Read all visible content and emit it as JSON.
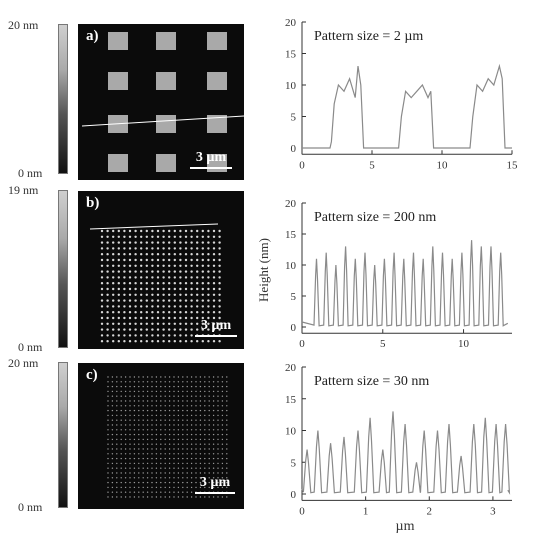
{
  "colorbars": [
    {
      "top_label": "20 nm",
      "bottom_label": "0 nm"
    },
    {
      "top_label": "19 nm",
      "bottom_label": "0 nm"
    },
    {
      "top_label": "20 nm",
      "bottom_label": "0 nm"
    }
  ],
  "afm_panels": [
    {
      "letter": "a)",
      "scale_label": "3 µm"
    },
    {
      "letter": "b)",
      "scale_label": "3 µm"
    },
    {
      "letter": "c)",
      "scale_label": "3 µm"
    }
  ],
  "ylabel": "Height (nm)",
  "xlabel": "µm",
  "colors": {
    "trace": "#8a8a8a",
    "afm_bg": "#0b0b0b"
  },
  "chart_data": [
    {
      "type": "line",
      "title": "Pattern size = 2 µm",
      "xlim": [
        0,
        15
      ],
      "ylim": [
        -1,
        20
      ],
      "xticks": [
        0,
        5,
        10,
        15
      ],
      "yticks": [
        0,
        5,
        10,
        15,
        20
      ],
      "x": [
        0,
        1,
        2,
        2.1,
        2.3,
        2.6,
        3.0,
        3.4,
        3.8,
        4.0,
        4.2,
        4.4,
        5,
        6,
        6.9,
        7.1,
        7.4,
        7.8,
        8.2,
        8.6,
        9.0,
        9.2,
        9.4,
        10,
        11,
        12.0,
        12.2,
        12.5,
        12.9,
        13.3,
        13.7,
        14.1,
        14.3,
        14.5,
        15
      ],
      "y": [
        0,
        0,
        0,
        1,
        7,
        10,
        9,
        11,
        8,
        13,
        10,
        0,
        0,
        0,
        0,
        5,
        9,
        8,
        9,
        10,
        8,
        9,
        0,
        0,
        0,
        0,
        5,
        10,
        9,
        11,
        10,
        13,
        11,
        0,
        0
      ]
    },
    {
      "type": "line",
      "title": "Pattern size = 200 nm",
      "xlim": [
        0,
        13
      ],
      "ylim": [
        -1,
        20
      ],
      "xticks": [
        0,
        5,
        10
      ],
      "yticks": [
        0,
        5,
        10,
        15,
        20
      ],
      "peaks_x": [
        0.9,
        1.5,
        2.1,
        2.7,
        3.3,
        3.9,
        4.5,
        5.1,
        5.7,
        6.3,
        6.9,
        7.5,
        8.1,
        8.7,
        9.3,
        9.9,
        10.5,
        11.1,
        11.7,
        12.3
      ],
      "peaks_y": [
        11,
        12,
        10,
        13,
        11,
        12,
        10,
        11,
        12,
        11,
        12,
        11,
        13,
        12,
        11,
        12,
        14,
        13,
        13,
        12
      ]
    },
    {
      "type": "line",
      "title": "Pattern size = 30 nm",
      "xlim": [
        0,
        3.3
      ],
      "ylim": [
        -1,
        20
      ],
      "xticks": [
        0,
        1,
        2,
        3
      ],
      "yticks": [
        0,
        5,
        10,
        15,
        20
      ],
      "peaks_x": [
        0.08,
        0.25,
        0.45,
        0.66,
        0.88,
        1.07,
        1.27,
        1.43,
        1.62,
        1.8,
        1.92,
        2.13,
        2.31,
        2.5,
        2.7,
        2.88,
        3.05,
        3.2
      ],
      "peaks_y": [
        7,
        10,
        8,
        9,
        10,
        12,
        7,
        13,
        11,
        5,
        10,
        10,
        11,
        6,
        11,
        12,
        11,
        11
      ]
    }
  ]
}
